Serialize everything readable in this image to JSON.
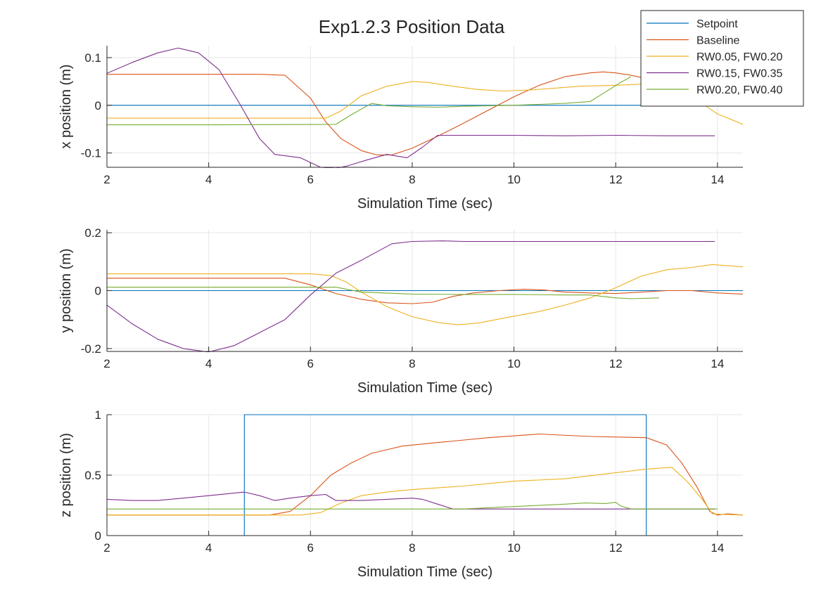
{
  "figure": {
    "title": "Exp1.2.3 Position Data"
  },
  "legend": {
    "placement": "top-right",
    "entries": [
      "Setpoint",
      "Baseline",
      "RW0.05, FW0.20",
      "RW0.15, FW0.35",
      "RW0.20, FW0.40"
    ]
  },
  "colors": {
    "Setpoint": "#0072BD",
    "Baseline": "#D95319",
    "RW0.05, FW0.20": "#EDB120",
    "RW0.15, FW0.35": "#7E2F8E",
    "RW0.20, FW0.40": "#77AC30"
  },
  "chart_data": [
    {
      "type": "line",
      "xlabel": "Simulation Time (sec)",
      "ylabel": "x position (m)",
      "xlim": [
        2,
        14.5
      ],
      "ylim": [
        -0.13,
        0.125
      ],
      "xticks": [
        2,
        4,
        6,
        8,
        10,
        12,
        14
      ],
      "yticks": [
        -0.1,
        0,
        0.1
      ],
      "ytick_labels": [
        "-0.1",
        "0",
        "0.1"
      ],
      "grid": true,
      "series": [
        {
          "name": "Setpoint",
          "x": [
            2,
            14.5
          ],
          "y": [
            0,
            0
          ]
        },
        {
          "name": "Baseline",
          "x": [
            2,
            3,
            4,
            5,
            5.5,
            6,
            6.3,
            6.6,
            7,
            7.3,
            7.6,
            8,
            8.5,
            9,
            9.5,
            10,
            10.5,
            11,
            11.5,
            11.75,
            12,
            12.3,
            12.6,
            13
          ],
          "y": [
            0.065,
            0.065,
            0.065,
            0.065,
            0.063,
            0.015,
            -0.035,
            -0.07,
            -0.095,
            -0.104,
            -0.104,
            -0.09,
            -0.065,
            -0.038,
            -0.01,
            0.018,
            0.042,
            0.06,
            0.068,
            0.07,
            0.068,
            0.063,
            0.056,
            0.045
          ]
        },
        {
          "name": "RW0.05, FW0.20",
          "x": [
            2,
            4,
            6.3,
            6.6,
            7,
            7.5,
            8,
            8.3,
            8.8,
            9.3,
            9.8,
            10.3,
            10.8,
            11.3,
            12,
            12.6,
            13,
            13.5,
            14,
            14.5
          ],
          "y": [
            -0.027,
            -0.027,
            -0.027,
            -0.012,
            0.02,
            0.04,
            0.05,
            0.048,
            0.04,
            0.033,
            0.03,
            0.032,
            0.036,
            0.04,
            0.042,
            0.045,
            0.035,
            0.018,
            -0.018,
            -0.04
          ]
        },
        {
          "name": "RW0.15, FW0.35",
          "x": [
            2,
            2.5,
            3,
            3.4,
            3.8,
            4.2,
            4.6,
            5,
            5.3,
            5.8,
            6.2,
            6.5,
            6.7,
            7.1,
            7.5,
            7.9,
            8.2,
            8.5,
            9,
            10,
            11,
            12,
            13,
            13.95
          ],
          "y": [
            0.067,
            0.09,
            0.11,
            0.12,
            0.11,
            0.075,
            0.005,
            -0.07,
            -0.103,
            -0.11,
            -0.13,
            -0.132,
            -0.128,
            -0.115,
            -0.103,
            -0.11,
            -0.088,
            -0.063,
            -0.063,
            -0.063,
            -0.064,
            -0.063,
            -0.064,
            -0.064
          ]
        },
        {
          "name": "RW0.20, FW0.40",
          "x": [
            2,
            4,
            6.5,
            6.8,
            7.2,
            7.5,
            8,
            8.5,
            9,
            10,
            11,
            11.5,
            11.8,
            12.1,
            12.3
          ],
          "y": [
            -0.041,
            -0.041,
            -0.04,
            -0.02,
            0.004,
            -0.001,
            -0.003,
            -0.004,
            -0.002,
            0,
            0.004,
            0.008,
            0.028,
            0.048,
            0.06
          ]
        }
      ]
    },
    {
      "type": "line",
      "xlabel": "Simulation Time (sec)",
      "ylabel": "y position (m)",
      "xlim": [
        2,
        14.5
      ],
      "ylim": [
        -0.21,
        0.21
      ],
      "xticks": [
        2,
        4,
        6,
        8,
        10,
        12,
        14
      ],
      "yticks": [
        -0.2,
        0,
        0.2
      ],
      "ytick_labels": [
        "-0.2",
        "0",
        "0.2"
      ],
      "grid": true,
      "series": [
        {
          "name": "Setpoint",
          "x": [
            2,
            14.5
          ],
          "y": [
            0,
            0
          ]
        },
        {
          "name": "Baseline",
          "x": [
            2,
            4,
            5.5,
            6,
            6.5,
            7,
            7.5,
            8,
            8.4,
            8.8,
            9.2,
            9.7,
            10.2,
            10.6,
            11,
            11.5,
            12,
            12.5,
            13,
            13.5,
            14,
            14.5
          ],
          "y": [
            0.043,
            0.043,
            0.043,
            0.02,
            -0.01,
            -0.03,
            -0.042,
            -0.045,
            -0.04,
            -0.02,
            -0.008,
            0,
            0.005,
            0.002,
            -0.005,
            -0.008,
            -0.01,
            -0.005,
            0,
            0,
            -0.008,
            -0.012
          ]
        },
        {
          "name": "RW0.05, FW0.20",
          "x": [
            2,
            4,
            6,
            6.4,
            6.7,
            7,
            7.5,
            8,
            8.5,
            8.9,
            9.3,
            9.8,
            10.5,
            11,
            11.5,
            12,
            12.5,
            13,
            13.5,
            13.9,
            14.2,
            14.5
          ],
          "y": [
            0.058,
            0.058,
            0.058,
            0.052,
            0.03,
            -0.005,
            -0.055,
            -0.09,
            -0.11,
            -0.118,
            -0.112,
            -0.095,
            -0.072,
            -0.05,
            -0.025,
            0.01,
            0.05,
            0.072,
            0.08,
            0.09,
            0.086,
            0.082
          ]
        },
        {
          "name": "RW0.15, FW0.35",
          "x": [
            2,
            2.5,
            3,
            3.5,
            4,
            4.5,
            5,
            5.5,
            6,
            6.5,
            7,
            7.6,
            8,
            8.6,
            9,
            10,
            11,
            12,
            13,
            13.95
          ],
          "y": [
            -0.05,
            -0.115,
            -0.168,
            -0.2,
            -0.212,
            -0.19,
            -0.145,
            -0.1,
            -0.015,
            0.06,
            0.105,
            0.162,
            0.17,
            0.172,
            0.17,
            0.17,
            0.17,
            0.17,
            0.17,
            0.17
          ]
        },
        {
          "name": "RW0.20, FW0.40",
          "x": [
            2,
            4,
            6,
            6.5,
            7,
            8,
            9,
            10,
            11,
            11.5,
            12,
            12.3,
            12.85
          ],
          "y": [
            0.012,
            0.012,
            0.012,
            0.012,
            -0.005,
            -0.012,
            -0.013,
            -0.013,
            -0.015,
            -0.015,
            -0.025,
            -0.028,
            -0.025
          ]
        }
      ]
    },
    {
      "type": "line",
      "xlabel": "Simulation Time (sec)",
      "ylabel": "z position (m)",
      "xlim": [
        2,
        14.5
      ],
      "ylim": [
        0,
        1
      ],
      "xticks": [
        2,
        4,
        6,
        8,
        10,
        12,
        14
      ],
      "yticks": [
        0,
        0.5,
        1
      ],
      "ytick_labels": [
        "0",
        "0.5",
        "1"
      ],
      "grid": true,
      "series": [
        {
          "name": "Setpoint",
          "x": [
            2,
            4.7,
            4.7,
            12.6,
            12.6,
            14.5
          ],
          "y": [
            0,
            0,
            1,
            1,
            0,
            0
          ]
        },
        {
          "name": "Baseline",
          "x": [
            2,
            4,
            5.2,
            5.6,
            6,
            6.4,
            6.8,
            7.2,
            7.8,
            8.5,
            9.5,
            10.5,
            11.5,
            12.6,
            13,
            13.3,
            13.6,
            13.85,
            14,
            14.2,
            14.5
          ],
          "y": [
            0.17,
            0.17,
            0.17,
            0.2,
            0.33,
            0.5,
            0.6,
            0.68,
            0.74,
            0.77,
            0.81,
            0.84,
            0.82,
            0.81,
            0.75,
            0.6,
            0.4,
            0.2,
            0.17,
            0.18,
            0.17
          ]
        },
        {
          "name": "RW0.05, FW0.20",
          "x": [
            2,
            4,
            5.8,
            6.2,
            6.6,
            7,
            7.5,
            8,
            9,
            10,
            11,
            12,
            12.6,
            13.1,
            13.4,
            13.7,
            13.9,
            14.1,
            14.5
          ],
          "y": [
            0.17,
            0.17,
            0.17,
            0.19,
            0.27,
            0.33,
            0.36,
            0.38,
            0.41,
            0.45,
            0.47,
            0.52,
            0.55,
            0.565,
            0.45,
            0.3,
            0.18,
            0.175,
            0.17
          ]
        },
        {
          "name": "RW0.15, FW0.35",
          "x": [
            2,
            2.5,
            3,
            3.5,
            4,
            4.7,
            5,
            5.3,
            5.6,
            6,
            6.3,
            6.5,
            7,
            7.5,
            8,
            8.2,
            8.5,
            8.8,
            9,
            10,
            11,
            12,
            13,
            13.95
          ],
          "y": [
            0.3,
            0.29,
            0.29,
            0.31,
            0.33,
            0.36,
            0.33,
            0.29,
            0.31,
            0.33,
            0.34,
            0.29,
            0.29,
            0.3,
            0.31,
            0.3,
            0.26,
            0.22,
            0.22,
            0.22,
            0.22,
            0.22,
            0.22,
            0.22
          ]
        },
        {
          "name": "RW0.20, FW0.40",
          "x": [
            2,
            4,
            6,
            7,
            8,
            8.6,
            9,
            10,
            11,
            11.4,
            11.8,
            12,
            12.1,
            12.3,
            13,
            14
          ],
          "y": [
            0.22,
            0.22,
            0.22,
            0.22,
            0.22,
            0.22,
            0.22,
            0.24,
            0.26,
            0.27,
            0.265,
            0.275,
            0.245,
            0.22,
            0.22,
            0.22
          ]
        }
      ]
    }
  ]
}
